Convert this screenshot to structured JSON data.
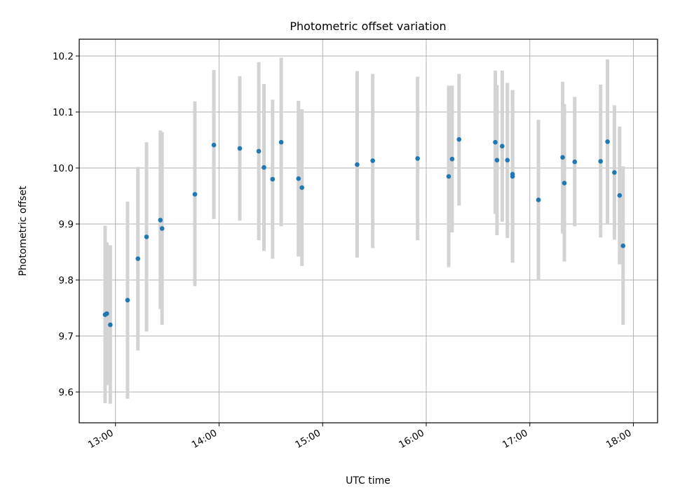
{
  "chart_data": {
    "type": "scatter",
    "title": "Photometric offset variation",
    "xlabel": "UTC time",
    "ylabel": "Photometric offset",
    "xlim": [
      "12:39",
      "18:14"
    ],
    "ylim": [
      9.545,
      10.23
    ],
    "xticks": [
      "13:00",
      "14:00",
      "15:00",
      "16:00",
      "17:00",
      "18:00"
    ],
    "yticks": [
      9.6,
      9.7,
      9.8,
      9.9,
      10.0,
      10.1,
      10.2
    ],
    "ytick_labels": [
      "9.6",
      "9.7",
      "9.8",
      "9.9",
      "10.0",
      "10.1",
      "10.2"
    ],
    "grid": true,
    "colors": {
      "point": "#1f77b4",
      "errorbar": "#d3d3d3",
      "grid": "#b0b0b0"
    },
    "series": [
      {
        "points": [
          {
            "t": "12:54",
            "y": 9.738,
            "lo": 9.58,
            "hi": 9.897
          },
          {
            "t": "12:55",
            "y": 9.74,
            "lo": 9.612,
            "hi": 9.867
          },
          {
            "t": "12:57",
            "y": 9.72,
            "lo": 9.579,
            "hi": 9.862
          },
          {
            "t": "13:07",
            "y": 9.764,
            "lo": 9.588,
            "hi": 9.94
          },
          {
            "t": "13:13",
            "y": 9.838,
            "lo": 9.674,
            "hi": 10.002
          },
          {
            "t": "13:18",
            "y": 9.877,
            "lo": 9.708,
            "hi": 10.046
          },
          {
            "t": "13:26",
            "y": 9.907,
            "lo": 9.748,
            "hi": 10.067
          },
          {
            "t": "13:27",
            "y": 9.892,
            "lo": 9.72,
            "hi": 10.064
          },
          {
            "t": "13:46",
            "y": 9.953,
            "lo": 9.789,
            "hi": 10.119
          },
          {
            "t": "13:57",
            "y": 10.041,
            "lo": 9.909,
            "hi": 10.175
          },
          {
            "t": "14:12",
            "y": 10.035,
            "lo": 9.906,
            "hi": 10.164
          },
          {
            "t": "14:23",
            "y": 10.03,
            "lo": 9.871,
            "hi": 10.189
          },
          {
            "t": "14:26",
            "y": 10.001,
            "lo": 9.852,
            "hi": 10.15
          },
          {
            "t": "14:31",
            "y": 9.98,
            "lo": 9.838,
            "hi": 10.122
          },
          {
            "t": "14:36",
            "y": 10.046,
            "lo": 9.896,
            "hi": 10.197
          },
          {
            "t": "14:46",
            "y": 9.981,
            "lo": 9.842,
            "hi": 10.12
          },
          {
            "t": "14:48",
            "y": 9.965,
            "lo": 9.825,
            "hi": 10.105
          },
          {
            "t": "15:20",
            "y": 10.006,
            "lo": 9.84,
            "hi": 10.173
          },
          {
            "t": "15:29",
            "y": 10.013,
            "lo": 9.857,
            "hi": 10.168
          },
          {
            "t": "15:55",
            "y": 10.017,
            "lo": 9.871,
            "hi": 10.163
          },
          {
            "t": "16:13",
            "y": 9.985,
            "lo": 9.823,
            "hi": 10.147
          },
          {
            "t": "16:15",
            "y": 10.016,
            "lo": 9.885,
            "hi": 10.147
          },
          {
            "t": "16:19",
            "y": 10.051,
            "lo": 9.933,
            "hi": 10.168
          },
          {
            "t": "16:40",
            "y": 10.046,
            "lo": 9.918,
            "hi": 10.174
          },
          {
            "t": "16:41",
            "y": 10.014,
            "lo": 9.88,
            "hi": 10.148
          },
          {
            "t": "16:44",
            "y": 10.039,
            "lo": 9.904,
            "hi": 10.174
          },
          {
            "t": "16:47",
            "y": 10.014,
            "lo": 9.875,
            "hi": 10.152
          },
          {
            "t": "16:50",
            "y": 9.985,
            "lo": 9.831,
            "hi": 10.139
          },
          {
            "t": "16:50",
            "y": 9.989,
            "lo": 9.838,
            "hi": 10.139
          },
          {
            "t": "17:05",
            "y": 9.943,
            "lo": 9.8,
            "hi": 10.086
          },
          {
            "t": "17:19",
            "y": 10.019,
            "lo": 9.883,
            "hi": 10.154
          },
          {
            "t": "17:20",
            "y": 9.973,
            "lo": 9.833,
            "hi": 10.114
          },
          {
            "t": "17:26",
            "y": 10.011,
            "lo": 9.896,
            "hi": 10.127
          },
          {
            "t": "17:41",
            "y": 10.012,
            "lo": 9.876,
            "hi": 10.149
          },
          {
            "t": "17:45",
            "y": 10.047,
            "lo": 9.9,
            "hi": 10.194
          },
          {
            "t": "17:49",
            "y": 9.992,
            "lo": 9.872,
            "hi": 10.112
          },
          {
            "t": "17:52",
            "y": 9.951,
            "lo": 9.828,
            "hi": 10.074
          },
          {
            "t": "17:54",
            "y": 9.861,
            "lo": 9.72,
            "hi": 10.003
          }
        ]
      }
    ]
  }
}
